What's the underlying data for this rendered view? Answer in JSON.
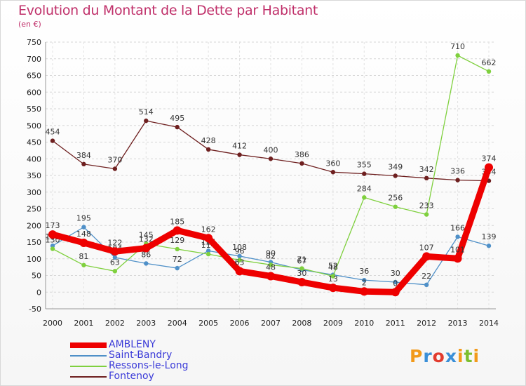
{
  "title": "Evolution du Montant de la Dette par Habitant",
  "subtitle": "(en €)",
  "logo": {
    "text": "Proxiti",
    "colors": [
      "#f29a1a",
      "#3a8fd8",
      "#e23b2e",
      "#3a8fd8",
      "#f29a1a",
      "#7bbf2e",
      "#f29a1a"
    ]
  },
  "chart_data": {
    "type": "line",
    "x": [
      2000,
      2001,
      2002,
      2003,
      2004,
      2005,
      2006,
      2007,
      2008,
      2009,
      2010,
      2011,
      2012,
      2013,
      2014
    ],
    "ylim": [
      -50,
      750
    ],
    "yticks": [
      -50,
      0,
      50,
      100,
      150,
      200,
      250,
      300,
      350,
      400,
      450,
      500,
      550,
      600,
      650,
      700,
      750
    ],
    "grid": true,
    "legend_position": "bottom-left",
    "series": [
      {
        "name": "Fontenoy",
        "color": "#6e1f1f",
        "values": [
          454,
          384,
          370,
          514,
          495,
          428,
          412,
          400,
          386,
          360,
          355,
          349,
          342,
          336,
          334
        ]
      },
      {
        "name": "Saint-Bandry",
        "color": "#4f90c8",
        "values": [
          139,
          195,
          104,
          86,
          72,
          124,
          108,
          90,
          67,
          52,
          36,
          30,
          22,
          166,
          139
        ]
      },
      {
        "name": "Ressons-le-Long",
        "color": "#7fd03e",
        "values": [
          130,
          81,
          63,
          145,
          129,
          114,
          96,
          82,
          71,
          48,
          284,
          256,
          233,
          710,
          662
        ]
      },
      {
        "name": "AMBLENY",
        "color": "#ee0000",
        "values": [
          173,
          148,
          122,
          132,
          185,
          162,
          63,
          48,
          30,
          13,
          2,
          0,
          107,
          101,
          374
        ]
      }
    ],
    "legend_order": [
      "AMBLENY",
      "Saint-Bandry",
      "Ressons-le-Long",
      "Fontenoy"
    ]
  }
}
